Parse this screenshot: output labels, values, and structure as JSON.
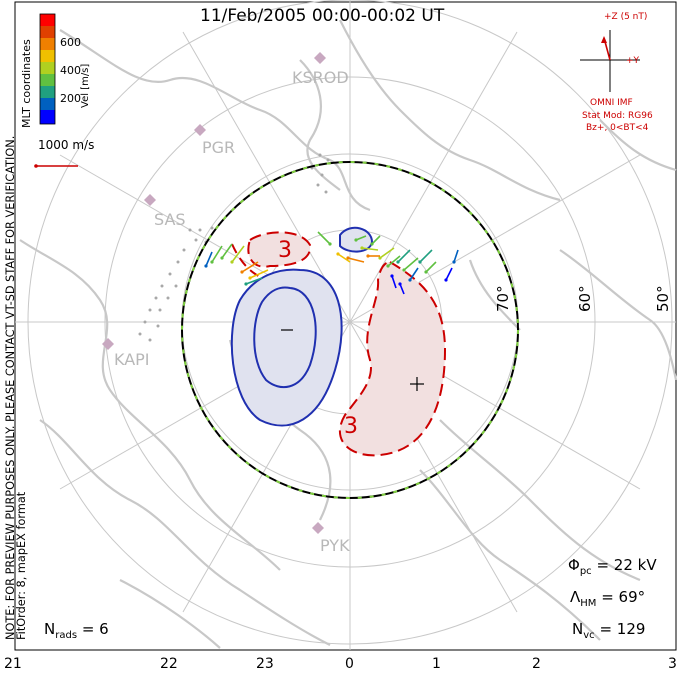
{
  "title": "11/Feb/2005 00:00-00:02 UT",
  "colorbar": {
    "label": "Vel [m/s]",
    "ticks": [
      "600",
      "400",
      "200"
    ],
    "colors": [
      "#0000ff",
      "#0060c0",
      "#20a080",
      "#60c040",
      "#b0d020",
      "#f0c000",
      "#f08000",
      "#e04000",
      "#ff0000"
    ]
  },
  "vector_scale_label": "1000 m/s",
  "side_text": {
    "coords": "MLT coordinates",
    "note": "NOTE: FOR PREVIEW PURPOSES ONLY. PLEASE CONTACT VT-SD STAFF FOR VERIFICATION.",
    "fit": "FitOrder: 8, mapEX format"
  },
  "imf": {
    "z_label": "+Z (5 nT)",
    "y_label": "+Y",
    "source": "OMNI IMF",
    "model": "Stat Mod: RG96",
    "condition": "Bz+, 0<BT<4"
  },
  "stations": [
    "KSROD",
    "PGR",
    "SAS",
    "KAPI",
    "PYK"
  ],
  "latitude_labels": [
    "70°",
    "60°",
    "50°"
  ],
  "mlt_labels": [
    "21",
    "22",
    "23",
    "0",
    "1",
    "2",
    "3"
  ],
  "contour_labels": {
    "neg_value": "3",
    "pos_value": "3",
    "neg_sign": "−",
    "pos_sign": "+"
  },
  "stats": {
    "phi_sym": "Φ",
    "phi_sub": "pc",
    "phi_value": "= 22 kV",
    "lam_sym": "Λ",
    "lam_sub": "HM",
    "lam_value": "= 69°",
    "nvc_sym": "N",
    "nvc_sub": "vc",
    "nvc_value": "= 129",
    "nrads_sym": "N",
    "nrads_sub": "rads",
    "nrads_value": "= 6"
  }
}
